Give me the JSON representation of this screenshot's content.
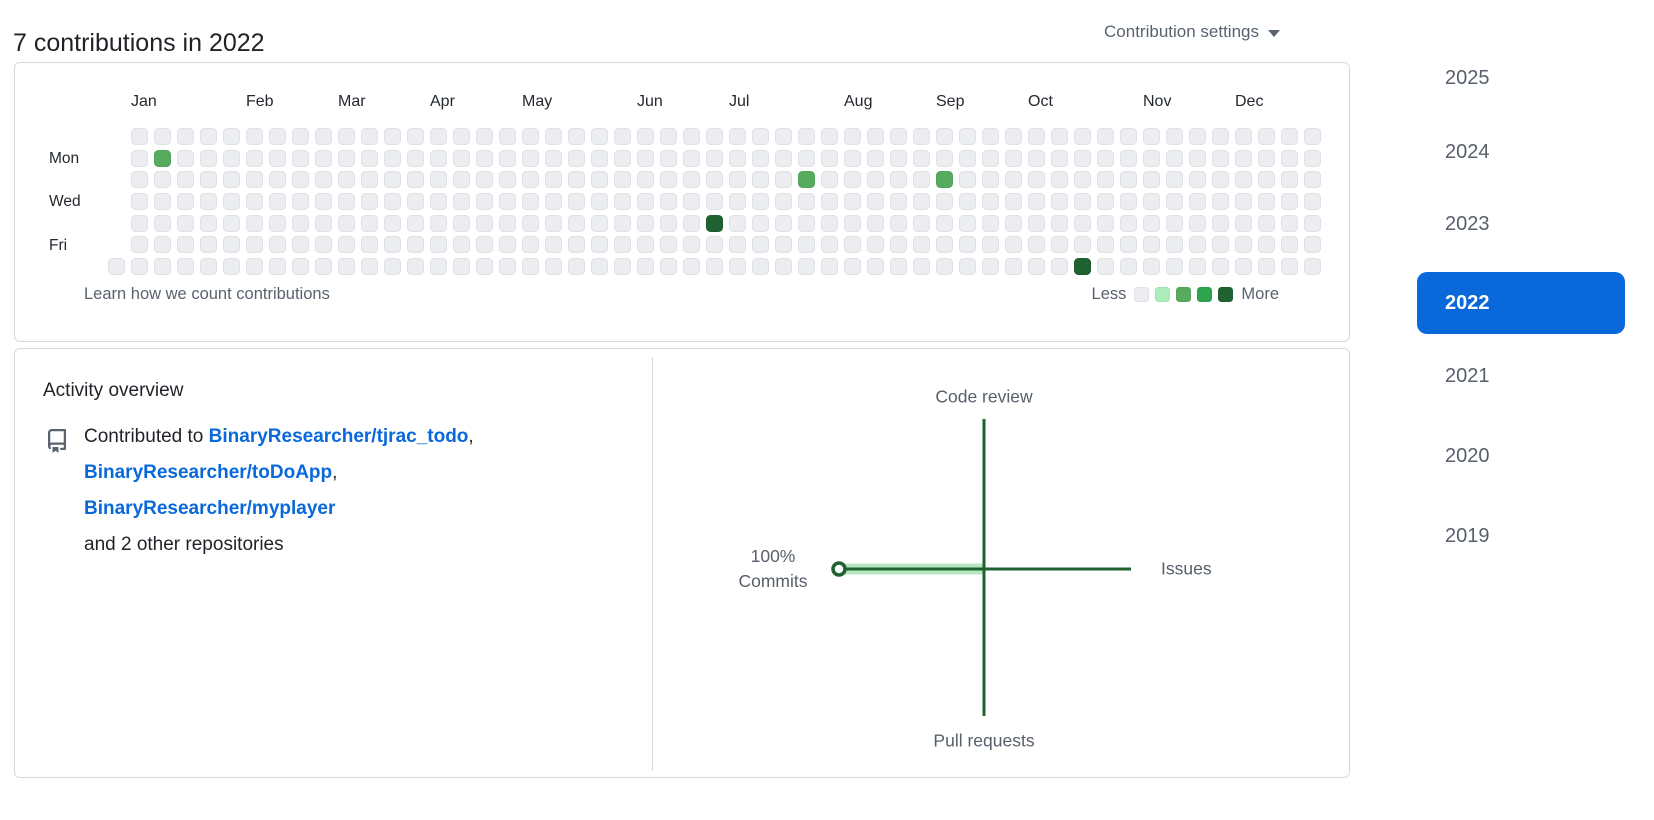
{
  "page_title": "7 contributions in 2022",
  "contribution_settings": {
    "label": "Contribution settings"
  },
  "calendar": {
    "palette": [
      "#ebedf0",
      "#aceebb",
      "#57ab5e",
      "#2da44e",
      "#1f6130"
    ],
    "months": [
      {
        "label": "Jan",
        "week": 1
      },
      {
        "label": "Feb",
        "week": 6
      },
      {
        "label": "Mar",
        "week": 10
      },
      {
        "label": "Apr",
        "week": 14
      },
      {
        "label": "May",
        "week": 18
      },
      {
        "label": "Jun",
        "week": 23
      },
      {
        "label": "Jul",
        "week": 27
      },
      {
        "label": "Aug",
        "week": 32
      },
      {
        "label": "Sep",
        "week": 36
      },
      {
        "label": "Oct",
        "week": 40
      },
      {
        "label": "Nov",
        "week": 45
      },
      {
        "label": "Dec",
        "week": 49
      }
    ],
    "day_labels": [
      {
        "label": "Mon",
        "row": 1
      },
      {
        "label": "Wed",
        "row": 3
      },
      {
        "label": "Fri",
        "row": 5
      }
    ],
    "total_weeks": 53,
    "first_week_has_only_saturday": true,
    "contributions": [
      {
        "week": 2,
        "day": 1,
        "level": 2
      },
      {
        "week": 26,
        "day": 4,
        "level": 4
      },
      {
        "week": 30,
        "day": 2,
        "level": 2
      },
      {
        "week": 36,
        "day": 2,
        "level": 2
      },
      {
        "week": 42,
        "day": 6,
        "level": 4
      }
    ],
    "footer_link": "Learn how we count contributions",
    "legend": {
      "less_label": "Less",
      "more_label": "More"
    }
  },
  "activity": {
    "heading": "Activity overview",
    "contributed": {
      "prefix": "Contributed to",
      "repos": [
        "BinaryResearcher/tjrac_todo",
        "BinaryResearcher/toDoApp",
        "BinaryResearcher/myplayer"
      ],
      "separator": ",",
      "suffix": "and 2 other repositories"
    },
    "graph": {
      "top_label": "Code review",
      "right_label": "Issues",
      "bottom_label": "Pull requests",
      "left_value": "100%",
      "left_label": "Commits",
      "axis_color": "#1f6130",
      "highlight_color": "#b7e6bf"
    }
  },
  "years": [
    "2025",
    "2024",
    "2023",
    "2022",
    "2021",
    "2020",
    "2019"
  ],
  "selected_year": "2022",
  "colors": {
    "accent_blue": "#0969da",
    "border": "#d1d9e0",
    "text_primary": "#1f2328",
    "text_secondary": "#59636e"
  }
}
